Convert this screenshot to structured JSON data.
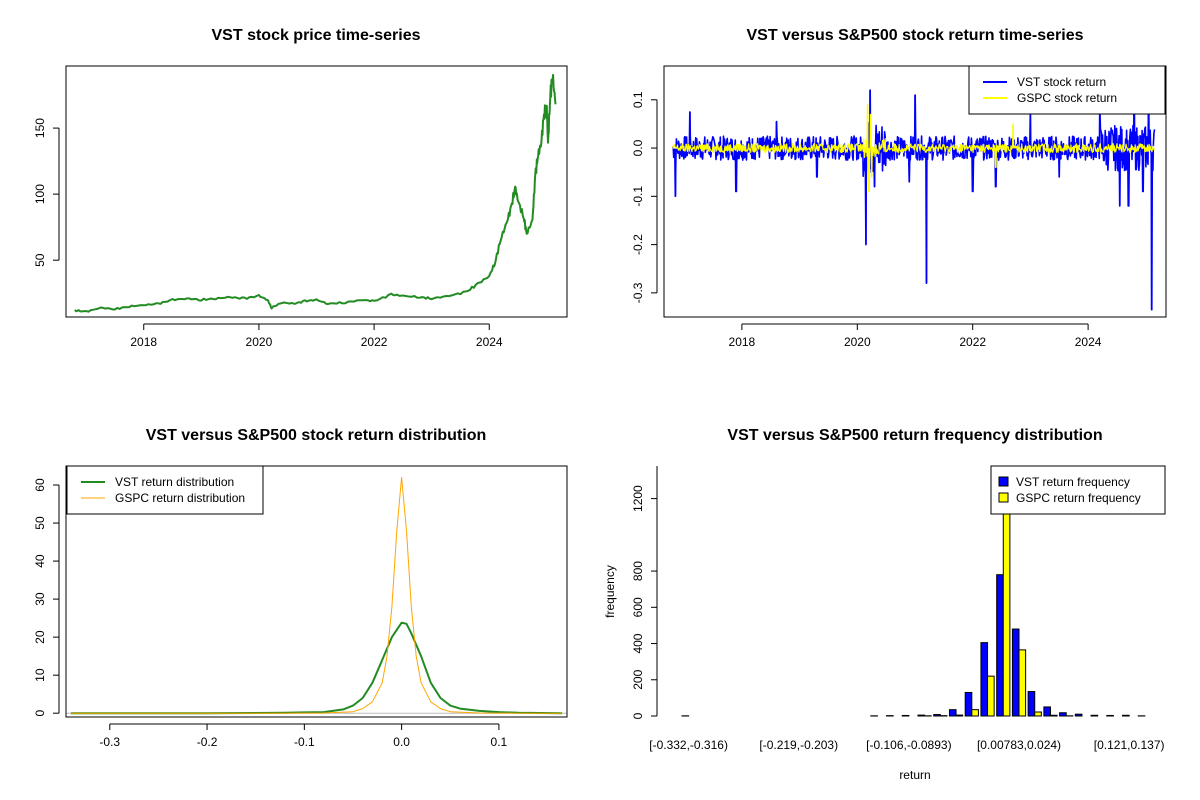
{
  "chart_data": [
    {
      "id": "price",
      "type": "line",
      "title": "VST stock price time-series",
      "xlabel": "",
      "ylabel": "",
      "x_range": [
        2016.65,
        2025.35
      ],
      "y_range": [
        7,
        197
      ],
      "x_ticks": [
        2018,
        2020,
        2022,
        2024
      ],
      "y_ticks": [
        50,
        100,
        150
      ],
      "x_tick_labels": [
        "2018",
        "2020",
        "2022",
        "2024"
      ],
      "y_tick_labels": [
        "50",
        "100",
        "150"
      ],
      "legend": null,
      "series": [
        {
          "color": "#228B22",
          "points": [
            [
              2016.8,
              12
            ],
            [
              2017.0,
              11
            ],
            [
              2017.25,
              14
            ],
            [
              2017.5,
              13
            ],
            [
              2017.75,
              15
            ],
            [
              2018.0,
              16
            ],
            [
              2018.25,
              17
            ],
            [
              2018.5,
              20
            ],
            [
              2018.75,
              21
            ],
            [
              2019.0,
              20
            ],
            [
              2019.25,
              21
            ],
            [
              2019.5,
              22
            ],
            [
              2019.75,
              21
            ],
            [
              2020.0,
              23
            ],
            [
              2020.15,
              20
            ],
            [
              2020.22,
              14
            ],
            [
              2020.4,
              18
            ],
            [
              2020.6,
              17
            ],
            [
              2020.8,
              19
            ],
            [
              2021.0,
              20
            ],
            [
              2021.2,
              17
            ],
            [
              2021.5,
              18
            ],
            [
              2021.8,
              20
            ],
            [
              2022.0,
              19
            ],
            [
              2022.3,
              24
            ],
            [
              2022.5,
              23
            ],
            [
              2022.8,
              22
            ],
            [
              2023.0,
              21
            ],
            [
              2023.3,
              23
            ],
            [
              2023.6,
              26
            ],
            [
              2023.8,
              32
            ],
            [
              2024.0,
              38
            ],
            [
              2024.1,
              48
            ],
            [
              2024.2,
              66
            ],
            [
              2024.3,
              78
            ],
            [
              2024.38,
              90
            ],
            [
              2024.45,
              105
            ],
            [
              2024.5,
              95
            ],
            [
              2024.6,
              82
            ],
            [
              2024.65,
              70
            ],
            [
              2024.75,
              80
            ],
            [
              2024.8,
              115
            ],
            [
              2024.85,
              130
            ],
            [
              2024.9,
              138
            ],
            [
              2024.95,
              160
            ],
            [
              2025.0,
              165
            ],
            [
              2025.02,
              138
            ],
            [
              2025.06,
              175
            ],
            [
              2025.1,
              190
            ],
            [
              2025.15,
              168
            ]
          ]
        }
      ]
    },
    {
      "id": "returns",
      "type": "line",
      "title": "VST versus S&P500 stock return time-series",
      "xlabel": "",
      "ylabel": "",
      "x_range": [
        2016.65,
        2025.35
      ],
      "y_range": [
        -0.35,
        0.17
      ],
      "x_ticks": [
        2018,
        2020,
        2022,
        2024
      ],
      "y_ticks": [
        -0.3,
        -0.2,
        -0.1,
        0.0,
        0.1
      ],
      "x_tick_labels": [
        "2018",
        "2020",
        "2022",
        "2024"
      ],
      "y_tick_labels": [
        "-0.3",
        "-0.2",
        "-0.1",
        "0.0",
        "0.1"
      ],
      "legend": {
        "position": "top-right"
      },
      "series": [
        {
          "name": "VST stock return",
          "color": "#0000FF",
          "start": 2016.8,
          "end": 2025.15,
          "base_amplitude": 0.025,
          "spikes": [
            [
              2016.85,
              -0.1
            ],
            [
              2017.1,
              0.075
            ],
            [
              2017.9,
              -0.09
            ],
            [
              2018.6,
              0.055
            ],
            [
              2019.3,
              -0.06
            ],
            [
              2020.15,
              -0.2
            ],
            [
              2020.22,
              0.12
            ],
            [
              2020.3,
              -0.08
            ],
            [
              2020.9,
              -0.07
            ],
            [
              2021.0,
              0.11
            ],
            [
              2021.2,
              -0.28
            ],
            [
              2022.0,
              -0.09
            ],
            [
              2022.4,
              -0.08
            ],
            [
              2023.0,
              0.075
            ],
            [
              2023.5,
              -0.06
            ],
            [
              2024.2,
              0.08
            ],
            [
              2024.55,
              -0.12
            ],
            [
              2024.7,
              -0.12
            ],
            [
              2024.8,
              0.14
            ],
            [
              2024.95,
              -0.09
            ],
            [
              2025.05,
              0.15
            ],
            [
              2025.1,
              -0.335
            ]
          ]
        },
        {
          "name": "GSPC stock return",
          "color": "#FFFF00",
          "start": 2016.8,
          "end": 2025.15,
          "base_amplitude": 0.009,
          "spikes": [
            [
              2020.18,
              0.09
            ],
            [
              2020.2,
              -0.09
            ],
            [
              2020.23,
              0.07
            ],
            [
              2020.25,
              -0.06
            ],
            [
              2022.4,
              -0.04
            ],
            [
              2022.7,
              0.05
            ]
          ]
        }
      ]
    },
    {
      "id": "density",
      "type": "line",
      "title": "VST versus S&P500 stock return distribution",
      "xlabel": "",
      "ylabel": "",
      "x_range": [
        -0.345,
        0.17
      ],
      "y_range": [
        -1,
        65
      ],
      "x_ticks": [
        -0.3,
        -0.2,
        -0.1,
        0.0,
        0.1
      ],
      "y_ticks": [
        0,
        10,
        20,
        30,
        40,
        50,
        60
      ],
      "x_tick_labels": [
        "-0.3",
        "-0.2",
        "-0.1",
        "0.0",
        "0.1"
      ],
      "y_tick_labels": [
        "0",
        "10",
        "20",
        "30",
        "40",
        "50",
        "60"
      ],
      "legend": {
        "position": "top-left"
      },
      "series": [
        {
          "name": "VST return distribution",
          "color": "#228B22",
          "width": 2,
          "points": [
            [
              -0.34,
              0
            ],
            [
              -0.2,
              0
            ],
            [
              -0.12,
              0.1
            ],
            [
              -0.1,
              0.2
            ],
            [
              -0.08,
              0.3
            ],
            [
              -0.06,
              1
            ],
            [
              -0.05,
              2
            ],
            [
              -0.04,
              4
            ],
            [
              -0.03,
              8
            ],
            [
              -0.02,
              14
            ],
            [
              -0.01,
              20
            ],
            [
              0.0,
              23.8
            ],
            [
              0.005,
              23.5
            ],
            [
              0.01,
              21
            ],
            [
              0.02,
              15
            ],
            [
              0.03,
              8
            ],
            [
              0.04,
              4
            ],
            [
              0.05,
              2
            ],
            [
              0.06,
              1.2
            ],
            [
              0.08,
              0.6
            ],
            [
              0.1,
              0.3
            ],
            [
              0.12,
              0.1
            ],
            [
              0.165,
              0
            ]
          ]
        },
        {
          "name": "GSPC return distribution",
          "color": "#FFA500",
          "width": 1,
          "points": [
            [
              -0.34,
              0
            ],
            [
              -0.12,
              0
            ],
            [
              -0.08,
              0.05
            ],
            [
              -0.05,
              0.4
            ],
            [
              -0.04,
              1.2
            ],
            [
              -0.03,
              3
            ],
            [
              -0.02,
              8
            ],
            [
              -0.015,
              15
            ],
            [
              -0.01,
              28
            ],
            [
              -0.005,
              48
            ],
            [
              0.0,
              62
            ],
            [
              0.005,
              48
            ],
            [
              0.01,
              28
            ],
            [
              0.015,
              15
            ],
            [
              0.02,
              8
            ],
            [
              0.03,
              3
            ],
            [
              0.04,
              1.2
            ],
            [
              0.05,
              0.4
            ],
            [
              0.08,
              0.05
            ],
            [
              0.12,
              0
            ],
            [
              0.165,
              0
            ]
          ]
        }
      ]
    },
    {
      "id": "hist",
      "type": "bar",
      "title": "VST versus S&P500 return frequency distribution",
      "xlabel": "return",
      "ylabel": "frequency",
      "y_range": [
        0,
        1380
      ],
      "y_ticks": [
        0,
        200,
        400,
        600,
        800,
        1200
      ],
      "y_tick_labels": [
        "0",
        "200",
        "400",
        "600",
        "800",
        "1200"
      ],
      "legend": {
        "position": "top-right"
      },
      "categories": [
        "[-0.332,-0.316)",
        "[-0.316,-0.3)",
        "[-0.3,-0.284)",
        "[-0.284,-0.268)",
        "[-0.268,-0.251)",
        "[-0.251,-0.235)",
        "[-0.235,-0.219)",
        "[-0.219,-0.203)",
        "[-0.203,-0.187)",
        "[-0.187,-0.171)",
        "[-0.171,-0.154)",
        "[-0.154,-0.138)",
        "[-0.138,-0.122)",
        "[-0.122,-0.106)",
        "[-0.106,-0.0893)",
        "[-0.0893,-0.0731)",
        "[-0.0731,-0.057)",
        "[-0.057,-0.0408)",
        "[-0.0408,-0.0246)",
        "[-0.0246,-0.00843)",
        "[-0.00843,0.00783)",
        "[0.00783,0.024)",
        "[0.024,0.0403)",
        "[0.0403,0.0565)",
        "[0.0565,0.0727)",
        "[0.0727,0.0889)",
        "[0.0889,0.105)",
        "[0.105,0.121)",
        "[0.121,0.137)",
        "[0.137,0.153)"
      ],
      "shown_category_labels": [
        "[-0.332,-0.316)",
        "[-0.219,-0.203)",
        "[-0.106,-0.0893)",
        "[0.00783,0.024)",
        "[0.121,0.137)"
      ],
      "series": [
        {
          "name": "VST return frequency",
          "color": "#0000FF",
          "values": [
            1,
            0,
            0,
            0,
            0,
            0,
            0,
            0,
            0,
            0,
            0,
            0,
            1,
            2,
            3,
            5,
            8,
            35,
            130,
            405,
            780,
            480,
            135,
            50,
            18,
            10,
            4,
            3,
            4,
            1
          ]
        },
        {
          "name": "GSPC return frequency",
          "color": "#FFFF00",
          "values": [
            0,
            0,
            0,
            0,
            0,
            0,
            0,
            0,
            0,
            0,
            0,
            0,
            0,
            0,
            0,
            1,
            2,
            5,
            35,
            220,
            1380,
            365,
            22,
            4,
            1,
            0,
            0,
            0,
            0,
            0
          ]
        }
      ]
    }
  ]
}
